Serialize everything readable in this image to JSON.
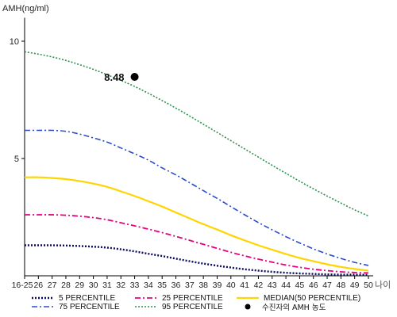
{
  "chart_data": {
    "type": "line",
    "ylabel": "AMH(ng/ml)",
    "xlabel": "나이",
    "yticks": [
      5,
      10
    ],
    "ylim": [
      0,
      11
    ],
    "categories": [
      "16-25",
      "26",
      "27",
      "28",
      "29",
      "30",
      "31",
      "32",
      "33",
      "34",
      "35",
      "36",
      "37",
      "38",
      "39",
      "40",
      "41",
      "42",
      "43",
      "44",
      "45",
      "46",
      "47",
      "48",
      "49",
      "50"
    ],
    "series": [
      {
        "name": "5 PERCENTILE",
        "color": "#0a0a60",
        "dash": "2,2",
        "width": 2.4,
        "values": [
          1.3,
          1.3,
          1.3,
          1.29,
          1.27,
          1.24,
          1.2,
          1.13,
          1.04,
          0.94,
          0.84,
          0.73,
          0.62,
          0.52,
          0.43,
          0.35,
          0.28,
          0.22,
          0.17,
          0.13,
          0.1,
          0.08,
          0.06,
          0.05,
          0.05,
          0.04
        ]
      },
      {
        "name": "25 PERCENTILE",
        "color": "#e6007e",
        "dash": "7,3,2,3",
        "width": 1.8,
        "values": [
          2.6,
          2.6,
          2.6,
          2.58,
          2.54,
          2.48,
          2.39,
          2.26,
          2.13,
          1.99,
          1.84,
          1.68,
          1.51,
          1.34,
          1.17,
          1.0,
          0.85,
          0.71,
          0.58,
          0.46,
          0.36,
          0.28,
          0.22,
          0.17,
          0.14,
          0.12
        ]
      },
      {
        "name": "MEDIAN(50 PERCENTILE)",
        "color": "#ffd500",
        "dash": "",
        "width": 2.2,
        "values": [
          4.2,
          4.2,
          4.17,
          4.12,
          4.04,
          3.93,
          3.79,
          3.6,
          3.4,
          3.18,
          2.95,
          2.7,
          2.45,
          2.2,
          1.97,
          1.73,
          1.51,
          1.3,
          1.11,
          0.93,
          0.76,
          0.62,
          0.49,
          0.38,
          0.29,
          0.22
        ]
      },
      {
        "name": "75 PERCENTILE",
        "color": "#2a4bd0",
        "dash": "7,3,2,3",
        "width": 1.6,
        "values": [
          6.2,
          6.2,
          6.2,
          6.16,
          6.04,
          5.88,
          5.7,
          5.45,
          5.2,
          4.93,
          4.6,
          4.3,
          3.97,
          3.63,
          3.3,
          2.95,
          2.6,
          2.27,
          1.96,
          1.67,
          1.4,
          1.15,
          0.93,
          0.74,
          0.57,
          0.44
        ]
      },
      {
        "name": "95 PERCENTILE",
        "color": "#2f8f4e",
        "dash": "2,2",
        "width": 1.6,
        "values": [
          9.55,
          9.45,
          9.33,
          9.18,
          9.0,
          8.8,
          8.57,
          8.33,
          8.07,
          7.78,
          7.47,
          7.15,
          6.81,
          6.46,
          6.11,
          5.76,
          5.41,
          5.06,
          4.71,
          4.37,
          4.03,
          3.71,
          3.4,
          3.1,
          2.81,
          2.55
        ]
      }
    ],
    "points": [
      {
        "name": "수진자의 AMH 농도",
        "category": "33",
        "value": 8.48,
        "label": "8.48",
        "color": "#000000"
      }
    ],
    "legend_placement": "bottom",
    "grid": false
  }
}
